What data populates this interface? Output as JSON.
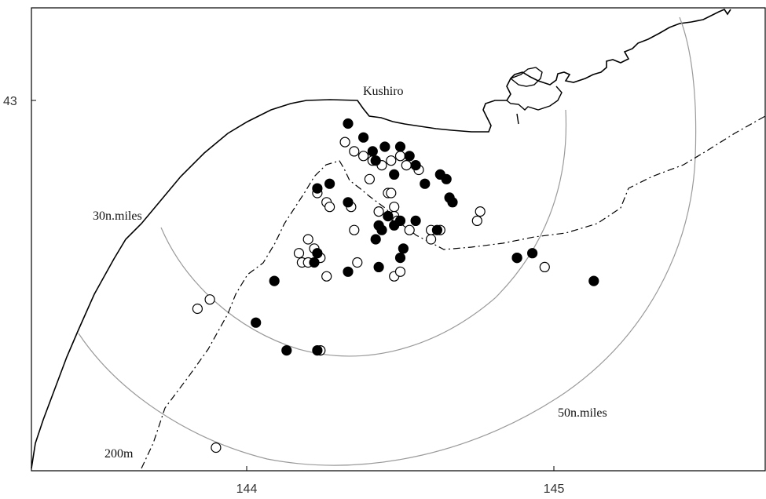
{
  "axes": {
    "x_ticks": [
      "144",
      "145"
    ],
    "y_ticks": [
      "43"
    ]
  },
  "labels": {
    "city": "Kushiro",
    "ring_inner": "30n.miles",
    "ring_outer": "50n.miles",
    "depth_contour": "200m"
  },
  "legend_series": {
    "filled": "filled-circle",
    "open": "open-circle"
  },
  "colors": {
    "coast": "#000000",
    "range_ring": "#9a9a9a",
    "contour": "#000000",
    "marker_fill": "#000000",
    "marker_open": "#ffffff"
  },
  "chart_data": {
    "type": "scatter",
    "xlim": [
      143.3,
      145.7
    ],
    "ylim": [
      42.2,
      43.1
    ],
    "x_ticks": [
      144,
      145
    ],
    "y_ticks": [
      43
    ],
    "series": [
      {
        "marker": "filled",
        "x": [
          144.33,
          144.38,
          144.41,
          144.45,
          144.5,
          144.53,
          144.42,
          144.48,
          144.55,
          144.63,
          144.65,
          144.58,
          144.66,
          144.67,
          144.27,
          144.23,
          144.33,
          144.43,
          144.46,
          144.55,
          144.48,
          144.5,
          144.44,
          144.42,
          144.51,
          144.62,
          144.23,
          144.22,
          144.33,
          144.43,
          144.5,
          144.88,
          144.93,
          145.13,
          144.09,
          144.03,
          144.13,
          144.23
        ],
        "y": [
          42.95,
          42.92,
          42.89,
          42.9,
          42.9,
          42.88,
          42.87,
          42.84,
          42.86,
          42.84,
          42.83,
          42.82,
          42.79,
          42.78,
          42.82,
          42.81,
          42.78,
          42.73,
          42.75,
          42.74,
          42.73,
          42.74,
          42.72,
          42.7,
          42.68,
          42.72,
          42.67,
          42.65,
          42.63,
          42.64,
          42.66,
          42.66,
          42.67,
          42.61,
          42.61,
          42.52,
          42.46,
          42.46
        ]
      },
      {
        "marker": "open",
        "x": [
          144.32,
          144.35,
          144.38,
          144.41,
          144.44,
          144.47,
          144.5,
          144.52,
          144.56,
          144.46,
          144.47,
          144.48,
          144.4,
          144.23,
          144.26,
          144.27,
          144.34,
          144.35,
          144.43,
          144.46,
          144.48,
          144.49,
          144.53,
          144.6,
          144.6,
          144.2,
          144.22,
          144.17,
          144.18,
          144.2,
          144.24,
          144.26,
          144.36,
          144.48,
          144.5,
          144.75,
          144.76,
          144.63,
          144.88,
          144.97,
          143.88,
          143.84,
          144.24,
          143.9
        ],
        "y": [
          42.91,
          42.89,
          42.88,
          42.87,
          42.86,
          42.87,
          42.88,
          42.86,
          42.85,
          42.8,
          42.8,
          42.77,
          42.83,
          42.8,
          42.78,
          42.77,
          42.77,
          42.72,
          42.76,
          42.75,
          42.75,
          42.74,
          42.72,
          42.72,
          42.7,
          42.7,
          42.68,
          42.67,
          42.65,
          42.65,
          42.66,
          42.62,
          42.65,
          42.62,
          42.63,
          42.74,
          42.76,
          42.72,
          42.66,
          42.64,
          42.57,
          42.55,
          42.46,
          42.25
        ]
      }
    ]
  }
}
